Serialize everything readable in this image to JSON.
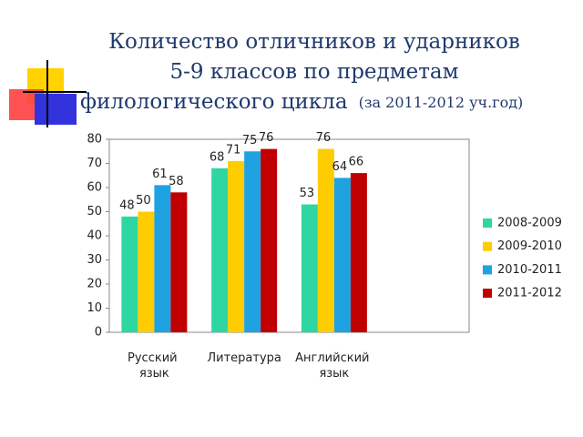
{
  "chart_data": {
    "type": "bar",
    "title_lines": [
      "Количество отличников и ударников",
      "5-9 классов по предметам",
      "филологического цикла"
    ],
    "title_note": "(за 2011-2012 уч.год)",
    "categories": [
      "Русский язык",
      "Литература",
      "Английский язык",
      null
    ],
    "series": [
      {
        "name": "2008-2009",
        "color": "#2ed6a2",
        "values": [
          48,
          68,
          53,
          null
        ]
      },
      {
        "name": "2009-2010",
        "color": "#ffcc00",
        "values": [
          50,
          71,
          76,
          null
        ]
      },
      {
        "name": "2010-2011",
        "color": "#1ea2e2",
        "values": [
          61,
          75,
          64,
          null
        ]
      },
      {
        "name": "2011-2012",
        "color": "#c00000",
        "values": [
          58,
          76,
          66,
          null
        ]
      }
    ],
    "ylim": [
      0,
      80
    ],
    "yticks": [
      0,
      10,
      20,
      30,
      40,
      50,
      60,
      70,
      80
    ],
    "grid": false,
    "legend": "right"
  }
}
